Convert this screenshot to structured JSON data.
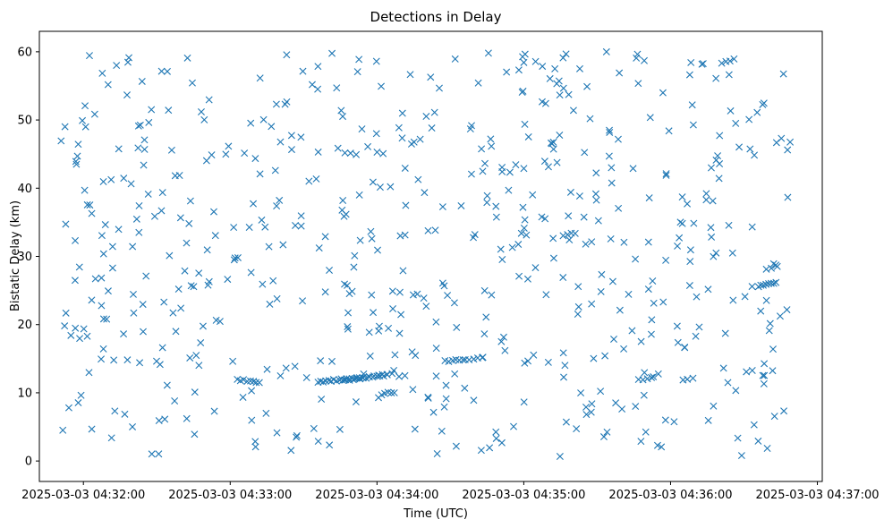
{
  "chart_data": {
    "type": "scatter",
    "title": "Detections in Delay",
    "xlabel": "Time (UTC)",
    "ylabel": "Bistatic Delay (km)",
    "x_unit": "seconds after 2025-03-03 04:32:00 UTC",
    "xlim": [
      -18,
      302
    ],
    "ylim": [
      -3,
      63
    ],
    "marker": "x",
    "color": "#1f77b4",
    "grid": false,
    "x_ticks": [
      {
        "value": 0,
        "label": "2025-03-03 04:32:00"
      },
      {
        "value": 60,
        "label": "2025-03-03 04:33:00"
      },
      {
        "value": 120,
        "label": "2025-03-03 04:34:00"
      },
      {
        "value": 180,
        "label": "2025-03-03 04:35:00"
      },
      {
        "value": 240,
        "label": "2025-03-03 04:36:00"
      },
      {
        "value": 300,
        "label": "2025-03-03 04:37:00"
      }
    ],
    "y_ticks": [
      {
        "value": 0,
        "label": "0"
      },
      {
        "value": 10,
        "label": "10"
      },
      {
        "value": 20,
        "label": "20"
      },
      {
        "value": 30,
        "label": "30"
      },
      {
        "value": 40,
        "label": "40"
      },
      {
        "value": 50,
        "label": "50"
      },
      {
        "value": 60,
        "label": "60"
      }
    ],
    "seed": 20250303,
    "random_detections": {
      "count": 590,
      "x_range": [
        -10,
        289
      ],
      "y_range": [
        0.5,
        60
      ]
    },
    "tracks": [
      {
        "x_start": 63,
        "x_end": 72,
        "y_start": 11.9,
        "y_end": 11.6,
        "count": 8
      },
      {
        "x_start": 96,
        "x_end": 114,
        "y_start": 11.6,
        "y_end": 12.2,
        "count": 18
      },
      {
        "x_start": 106,
        "x_end": 124,
        "y_start": 11.8,
        "y_end": 12.6,
        "count": 14
      },
      {
        "x_start": 117,
        "x_end": 126,
        "y_start": 12.3,
        "y_end": 12.8,
        "count": 6
      },
      {
        "x_start": 122,
        "x_end": 127,
        "y_start": 9.8,
        "y_end": 10.1,
        "count": 5
      },
      {
        "x_start": 148,
        "x_end": 155,
        "y_start": 14.6,
        "y_end": 14.8,
        "count": 6
      },
      {
        "x_start": 156,
        "x_end": 163,
        "y_start": 14.9,
        "y_end": 15.1,
        "count": 5
      },
      {
        "x_start": 196,
        "x_end": 201,
        "y_start": 33.0,
        "y_end": 33.4,
        "count": 4
      },
      {
        "x_start": 227,
        "x_end": 232,
        "y_start": 11.9,
        "y_end": 12.2,
        "count": 4
      },
      {
        "x_start": 245,
        "x_end": 249,
        "y_start": 11.8,
        "y_end": 12.0,
        "count": 3
      },
      {
        "x_start": 261,
        "x_end": 266,
        "y_start": 58.2,
        "y_end": 58.9,
        "count": 4
      },
      {
        "x_start": 276,
        "x_end": 283,
        "y_start": 25.6,
        "y_end": 26.1,
        "count": 8
      },
      {
        "x_start": 279,
        "x_end": 283,
        "y_start": 28.2,
        "y_end": 28.6,
        "count": 3
      },
      {
        "x_start": 75,
        "x_end": 78,
        "y_start": 13.5,
        "y_end": 13.5,
        "count": 1
      }
    ]
  }
}
